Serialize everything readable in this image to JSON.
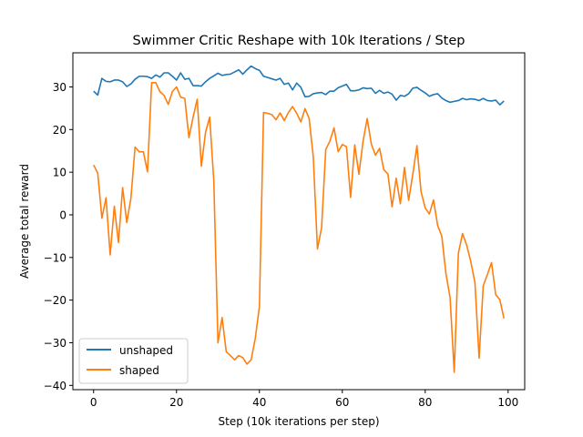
{
  "chart_data": {
    "type": "line",
    "title": "Swimmer Critic Reshape with 10k Iterations / Step",
    "xlabel": "Step (10k iterations per step)",
    "ylabel": "Average total reward",
    "xlim": [
      -5,
      104
    ],
    "ylim": [
      -41,
      38
    ],
    "xticks": [
      0,
      20,
      40,
      60,
      80,
      100
    ],
    "yticks": [
      -40,
      -30,
      -20,
      -10,
      0,
      10,
      20,
      30
    ],
    "grid": false,
    "legend_position": "lower-left",
    "series": [
      {
        "name": "unshaped",
        "color": "#1f77b4",
        "x": [
          0,
          1,
          2,
          3,
          4,
          5,
          6,
          7,
          8,
          9,
          10,
          11,
          12,
          13,
          14,
          15,
          16,
          17,
          18,
          19,
          20,
          21,
          22,
          23,
          24,
          25,
          26,
          27,
          28,
          29,
          30,
          31,
          32,
          33,
          34,
          35,
          36,
          37,
          38,
          39,
          40,
          41,
          42,
          43,
          44,
          45,
          46,
          47,
          48,
          49,
          50,
          51,
          52,
          53,
          54,
          55,
          56,
          57,
          58,
          59,
          60,
          61,
          62,
          63,
          64,
          65,
          66,
          67,
          68,
          69,
          70,
          71,
          72,
          73,
          74,
          75,
          76,
          77,
          78,
          79,
          80,
          81,
          82,
          83,
          84,
          85,
          86,
          87,
          88,
          89,
          90,
          91,
          92,
          93,
          94,
          95,
          96,
          97,
          98,
          99
        ],
        "y": [
          29.0,
          28.1,
          32.0,
          31.3,
          31.2,
          31.6,
          31.6,
          31.2,
          30.1,
          30.7,
          31.8,
          32.5,
          32.5,
          32.4,
          32.0,
          32.8,
          32.3,
          33.3,
          33.3,
          32.5,
          31.6,
          33.3,
          31.8,
          32.0,
          30.3,
          30.3,
          30.2,
          31.2,
          32.0,
          32.6,
          33.2,
          32.7,
          32.9,
          33.0,
          33.5,
          34.0,
          33.0,
          34.0,
          34.9,
          34.3,
          33.9,
          32.5,
          32.2,
          31.9,
          31.6,
          32.0,
          30.6,
          30.9,
          29.3,
          30.9,
          29.9,
          27.7,
          27.8,
          28.4,
          28.6,
          28.7,
          28.2,
          29.0,
          29.0,
          29.8,
          30.2,
          30.6,
          29.1,
          29.1,
          29.3,
          29.8,
          29.6,
          29.7,
          28.5,
          29.2,
          28.5,
          28.8,
          28.3,
          26.9,
          28.0,
          27.8,
          28.4,
          29.7,
          29.9,
          29.2,
          28.6,
          27.8,
          28.2,
          28.4,
          27.4,
          26.8,
          26.4,
          26.6,
          26.8,
          27.3,
          27.0,
          27.2,
          27.1,
          26.8,
          27.3,
          26.8,
          26.7,
          26.9,
          25.8,
          26.7
        ]
      },
      {
        "name": "shaped",
        "color": "#ff7f0e",
        "x": [
          0,
          1,
          2,
          3,
          4,
          5,
          6,
          7,
          8,
          9,
          10,
          11,
          12,
          13,
          14,
          15,
          16,
          17,
          18,
          19,
          20,
          21,
          22,
          23,
          24,
          25,
          26,
          27,
          28,
          29,
          30,
          31,
          32,
          33,
          34,
          35,
          36,
          37,
          38,
          39,
          40,
          41,
          42,
          43,
          44,
          45,
          46,
          47,
          48,
          49,
          50,
          51,
          52,
          53,
          54,
          55,
          56,
          57,
          58,
          59,
          60,
          61,
          62,
          63,
          64,
          65,
          66,
          67,
          68,
          69,
          70,
          71,
          72,
          73,
          74,
          75,
          76,
          77,
          78,
          79,
          80,
          81,
          82,
          83,
          84,
          85,
          86,
          87,
          88,
          89,
          90,
          91,
          92,
          93,
          94,
          95,
          96,
          97,
          98,
          99
        ],
        "y": [
          11.7,
          9.8,
          -0.8,
          4.0,
          -9.4,
          2.0,
          -6.5,
          6.4,
          -1.8,
          3.9,
          15.9,
          14.8,
          14.8,
          10.1,
          31.0,
          31.0,
          28.9,
          28.0,
          25.9,
          28.9,
          30.0,
          27.6,
          27.3,
          18.1,
          22.9,
          27.1,
          11.4,
          19.3,
          22.9,
          7.9,
          -30.0,
          -24.1,
          -32.1,
          -33.0,
          -34.0,
          -33.0,
          -33.5,
          -35.0,
          -34.0,
          -29.0,
          -21.5,
          24.0,
          23.8,
          23.5,
          22.3,
          23.9,
          22.1,
          24.0,
          25.4,
          23.8,
          21.8,
          24.9,
          22.6,
          13.5,
          -8.0,
          -3.0,
          15.3,
          17.3,
          20.4,
          14.8,
          16.5,
          16.0,
          4.1,
          16.4,
          9.5,
          17.2,
          22.6,
          16.6,
          14.0,
          15.6,
          10.6,
          9.6,
          1.9,
          8.6,
          2.6,
          11.1,
          3.4,
          9.5,
          16.2,
          5.4,
          1.6,
          0.2,
          3.5,
          -2.5,
          -5.0,
          -13.8,
          -19.4,
          -36.9,
          -9.0,
          -4.4,
          -7.1,
          -11.0,
          -15.9,
          -33.6,
          -16.6,
          -14.0,
          -11.2,
          -18.7,
          -19.9,
          -24.3
        ]
      }
    ]
  }
}
